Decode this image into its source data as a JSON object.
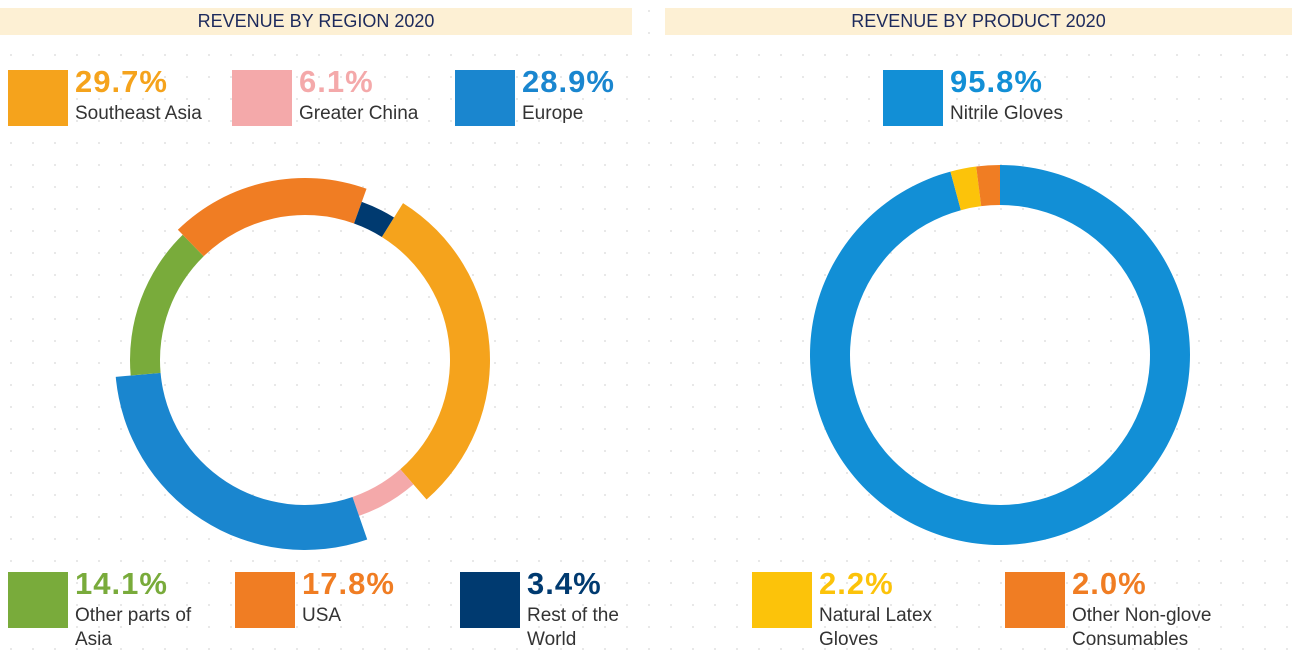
{
  "chart_data": [
    {
      "type": "pie",
      "title": "REVENUE BY REGION 2020",
      "categories": [
        "Southeast Asia",
        "Greater China",
        "Europe",
        "Other parts of Asia",
        "USA",
        "Rest of the World"
      ],
      "values": [
        29.7,
        6.1,
        28.9,
        14.1,
        17.8,
        3.4
      ],
      "value_labels": [
        "29.7%",
        "6.1%",
        "28.9%",
        "14.1%",
        "17.8%",
        "3.4%"
      ],
      "colors": [
        "#f5a31c",
        "#f4a9aa",
        "#1a86cf",
        "#79ab3b",
        "#f07d23",
        "#003a70"
      ]
    },
    {
      "type": "pie",
      "title": "REVENUE BY PRODUCT 2020",
      "categories": [
        "Nitrile Gloves",
        "Natural Latex Gloves",
        "Other Non-glove Consumables"
      ],
      "values": [
        95.8,
        2.2,
        2.0
      ],
      "value_labels": [
        "95.8%",
        "2.2%",
        "2.0%"
      ],
      "colors": [
        "#128fd6",
        "#fcc30a",
        "#f07d23"
      ]
    }
  ]
}
